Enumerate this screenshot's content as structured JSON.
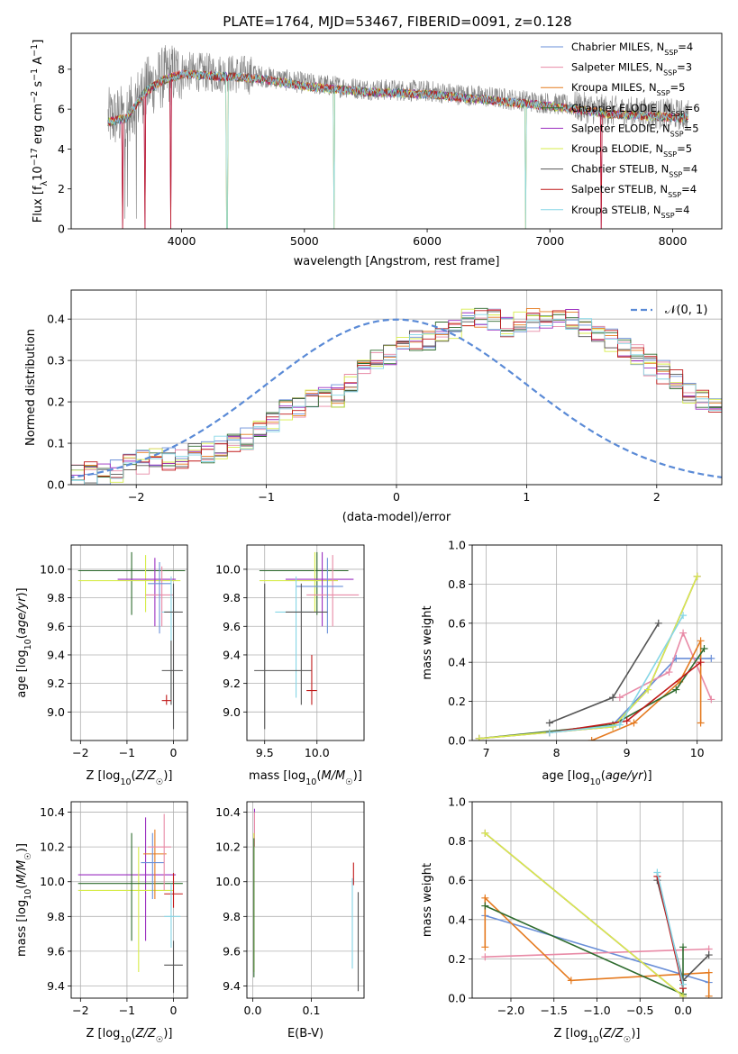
{
  "title": "PLATE=1764, MJD=53467, FIBERID=0091, z=0.128",
  "colors": {
    "Chabrier MILES": "#6a8fd8",
    "Salpeter MILES": "#e88aa6",
    "Kroupa MILES": "#e57a1f",
    "Chabrier ELODIE": "#2e6b2e",
    "Salpeter ELODIE": "#9b2fc0",
    "Kroupa ELODIE": "#d7ec4a",
    "Chabrier STELIB": "#555555",
    "Salpeter STELIB": "#c01818",
    "Kroupa STELIB": "#86d6e6"
  },
  "chart_data": [
    {
      "id": "spectrum",
      "type": "line",
      "title": "PLATE=1764, MJD=53467, FIBERID=0091, z=0.128",
      "xlabel": "wavelength [Angstrom, rest frame]",
      "ylabel": "Flux [f_λ 10^-17 erg cm^-2 s^-1 A^-1]",
      "xlim": [
        3100,
        8400
      ],
      "ylim": [
        0,
        9.8
      ],
      "xticks": [
        4000,
        5000,
        6000,
        7000,
        8000
      ],
      "yticks": [
        0,
        2,
        4,
        6,
        8
      ],
      "grid": false,
      "legend_position": "top-right",
      "legend": [
        {
          "label": "Chabrier MILES, N",
          "sub": "SSP",
          "value": "=4"
        },
        {
          "label": "Salpeter MILES, N",
          "sub": "SSP",
          "value": "=3"
        },
        {
          "label": "Kroupa MILES, N",
          "sub": "SSP",
          "value": "=5"
        },
        {
          "label": "Chabrier ELODIE, N",
          "sub": "SSP",
          "value": "=6"
        },
        {
          "label": "Salpeter ELODIE, N",
          "sub": "SSP",
          "value": "=5"
        },
        {
          "label": "Kroupa ELODIE, N",
          "sub": "SSP",
          "value": "=5"
        },
        {
          "label": "Chabrier STELIB, N",
          "sub": "SSP",
          "value": "=4"
        },
        {
          "label": "Salpeter STELIB, N",
          "sub": "SSP",
          "value": "=4"
        },
        {
          "label": "Kroupa STELIB, N",
          "sub": "SSP",
          "value": "=4"
        }
      ],
      "data_envelope": {
        "x": [
          3400,
          3550,
          3700,
          3850,
          4000,
          4300,
          4600,
          5000,
          5500,
          6000,
          6500,
          7000,
          7500,
          8100
        ],
        "y": [
          5.5,
          5.7,
          7.0,
          7.6,
          7.9,
          7.8,
          7.7,
          7.3,
          7.0,
          6.9,
          6.6,
          6.3,
          5.9,
          5.7
        ]
      },
      "model_dropouts": [
        3520,
        3700,
        3910,
        4370,
        5240,
        6800,
        7420
      ]
    },
    {
      "id": "residuals",
      "type": "step",
      "xlabel": "(data-model)/error",
      "ylabel": "Normed distribution",
      "xlim": [
        -2.5,
        2.5
      ],
      "ylim": [
        0,
        0.47
      ],
      "xticks": [
        -2,
        -1,
        0,
        1,
        2
      ],
      "yticks": [
        0.0,
        0.1,
        0.2,
        0.3,
        0.4
      ],
      "grid": true,
      "legend_position": "top-right",
      "legend": [
        "𝒩(0, 1)"
      ],
      "bin_width": 0.1,
      "mean_histogram": [
        0.02,
        0.02,
        0.025,
        0.03,
        0.035,
        0.05,
        0.055,
        0.06,
        0.06,
        0.065,
        0.075,
        0.08,
        0.09,
        0.1,
        0.11,
        0.13,
        0.155,
        0.175,
        0.19,
        0.2,
        0.205,
        0.215,
        0.245,
        0.28,
        0.3,
        0.315,
        0.33,
        0.345,
        0.355,
        0.365,
        0.38,
        0.4,
        0.405,
        0.395,
        0.385,
        0.39,
        0.4,
        0.405,
        0.41,
        0.395,
        0.38,
        0.365,
        0.35,
        0.33,
        0.31,
        0.29,
        0.27,
        0.25,
        0.225,
        0.2,
        0.185,
        0.16,
        0.14,
        0.125,
        0.11,
        0.095,
        0.085,
        0.075,
        0.065,
        0.055,
        0.05,
        0.04,
        0.035,
        0.03,
        0.025
      ]
    },
    {
      "id": "age-vs-Z",
      "type": "errorbar",
      "xlabel": "Z [log10(Z/Z☉)]",
      "ylabel": "age [log10(age/yr)]",
      "xlim": [
        -2.2,
        0.3
      ],
      "ylim": [
        8.8,
        10.17
      ],
      "xticks": [
        -2,
        -1,
        0
      ],
      "yticks": [
        9.0,
        9.2,
        9.4,
        9.6,
        9.8,
        10.0
      ],
      "grid": true,
      "points": [
        {
          "s": "Chabrier ELODIE",
          "x": -0.9,
          "xl": -2.05,
          "xh": 0.25,
          "y": 9.99,
          "yl": 9.68,
          "yh": 10.12
        },
        {
          "s": "Kroupa ELODIE",
          "x": -0.6,
          "xl": -2.05,
          "xh": 0.15,
          "y": 9.92,
          "yl": 9.7,
          "yh": 10.1
        },
        {
          "s": "Salpeter ELODIE",
          "x": -0.4,
          "xl": -1.2,
          "xh": 0.05,
          "y": 9.93,
          "yl": 9.6,
          "yh": 10.08
        },
        {
          "s": "Salpeter MILES",
          "x": -0.25,
          "xl": -0.6,
          "xh": 0.0,
          "y": 9.82,
          "yl": 9.6,
          "yh": 10.02
        },
        {
          "s": "Chabrier MILES",
          "x": -0.3,
          "xl": -0.55,
          "xh": -0.05,
          "y": 9.9,
          "yl": 9.55,
          "yh": 10.05
        },
        {
          "s": "Kroupa STELIB",
          "x": -0.05,
          "xl": -0.25,
          "xh": 0.1,
          "y": 9.7,
          "yl": 9.1,
          "yh": 9.95
        },
        {
          "s": "Chabrier STELIB",
          "x": 0.0,
          "xl": -0.2,
          "xh": 0.2,
          "y": 9.7,
          "yl": 8.88,
          "yh": 9.9
        },
        {
          "s": "Chabrier STELIB",
          "x": -0.05,
          "xl": -0.25,
          "xh": 0.2,
          "y": 9.29,
          "yl": 9.05,
          "yh": 9.5
        },
        {
          "s": "Salpeter STELIB",
          "x": -0.15,
          "xl": -0.25,
          "xh": -0.05,
          "y": 9.08,
          "yl": 9.05,
          "yh": 9.12
        }
      ]
    },
    {
      "id": "age-vs-mass",
      "type": "errorbar",
      "xlabel": "mass [log10(M/M☉)]",
      "ylabel": "",
      "xlim": [
        9.33,
        10.45
      ],
      "ylim": [
        8.8,
        10.17
      ],
      "xticks": [
        9.5,
        10.0
      ],
      "yticks": [
        9.0,
        9.2,
        9.4,
        9.6,
        9.8,
        10.0
      ],
      "grid": true,
      "points": [
        {
          "s": "Chabrier ELODIE",
          "x": 10.0,
          "xl": 9.45,
          "xh": 10.3,
          "y": 9.99,
          "yl": 9.68,
          "yh": 10.12
        },
        {
          "s": "Kroupa ELODIE",
          "x": 9.98,
          "xl": 9.45,
          "xh": 10.2,
          "y": 9.92,
          "yl": 9.7,
          "yh": 10.12
        },
        {
          "s": "Salpeter ELODIE",
          "x": 10.05,
          "xl": 9.7,
          "xh": 10.35,
          "y": 9.93,
          "yl": 9.6,
          "yh": 10.12
        },
        {
          "s": "Salpeter MILES",
          "x": 10.15,
          "xl": 9.9,
          "xh": 10.4,
          "y": 9.82,
          "yl": 9.6,
          "yh": 10.1
        },
        {
          "s": "Chabrier MILES",
          "x": 10.1,
          "xl": 9.8,
          "xh": 10.25,
          "y": 9.88,
          "yl": 9.55,
          "yh": 10.08
        },
        {
          "s": "Kroupa STELIB",
          "x": 9.8,
          "xl": 9.6,
          "xh": 9.95,
          "y": 9.7,
          "yl": 9.1,
          "yh": 9.95
        },
        {
          "s": "Chabrier STELIB",
          "x": 9.85,
          "xl": 9.7,
          "xh": 10.1,
          "y": 9.7,
          "yl": 9.05,
          "yh": 9.9
        },
        {
          "s": "Chabrier STELIB",
          "x": 9.5,
          "xl": 9.4,
          "xh": 9.95,
          "y": 9.29,
          "yl": 8.88,
          "yh": 9.9
        },
        {
          "s": "Salpeter STELIB",
          "x": 9.95,
          "xl": 9.9,
          "xh": 10.0,
          "y": 9.15,
          "yl": 9.05,
          "yh": 9.4
        }
      ]
    },
    {
      "id": "weight-vs-age",
      "type": "line",
      "xlabel": "age [log10(age/yr)]",
      "ylabel": "mass weight",
      "xlim": [
        6.8,
        10.35
      ],
      "ylim": [
        0,
        1.0
      ],
      "xticks": [
        7,
        8,
        9,
        10
      ],
      "yticks": [
        0.0,
        0.2,
        0.4,
        0.6,
        0.8,
        1.0
      ],
      "grid": true,
      "series": [
        {
          "name": "Chabrier MILES",
          "x": [
            8.8,
            9.7,
            10.2
          ],
          "y": [
            0.08,
            0.42,
            0.42
          ]
        },
        {
          "name": "Salpeter MILES",
          "x": [
            8.9,
            9.6,
            9.8,
            10.2
          ],
          "y": [
            0.22,
            0.35,
            0.55,
            0.21
          ]
        },
        {
          "name": "Kroupa MILES",
          "x": [
            8.5,
            9.1,
            9.75,
            10.05,
            10.05
          ],
          "y": [
            0.0,
            0.09,
            0.3,
            0.51,
            0.09
          ]
        },
        {
          "name": "Chabrier ELODIE",
          "x": [
            6.9,
            8.8,
            9.7,
            10.1
          ],
          "y": [
            0.01,
            0.08,
            0.26,
            0.47
          ]
        },
        {
          "name": "Salpeter ELODIE",
          "x": [
            6.9,
            8.8,
            9.3,
            10.0
          ],
          "y": [
            0.01,
            0.07,
            0.26,
            0.84
          ]
        },
        {
          "name": "Kroupa ELODIE",
          "x": [
            6.9,
            8.8,
            9.3,
            10.0
          ],
          "y": [
            0.01,
            0.07,
            0.26,
            0.84
          ]
        },
        {
          "name": "Chabrier STELIB",
          "x": [
            7.9,
            8.8,
            9.45
          ],
          "y": [
            0.09,
            0.22,
            0.6
          ]
        },
        {
          "name": "Salpeter STELIB",
          "x": [
            7.9,
            9.0,
            10.05
          ],
          "y": [
            0.04,
            0.1,
            0.4
          ]
        },
        {
          "name": "Kroupa STELIB",
          "x": [
            7.9,
            8.9,
            9.8
          ],
          "y": [
            0.04,
            0.08,
            0.64
          ]
        }
      ]
    },
    {
      "id": "mass-vs-Z",
      "type": "errorbar",
      "xlabel": "Z [log10(Z/Z☉)]",
      "ylabel": "mass [log10(M/M☉)]",
      "xlim": [
        -2.2,
        0.3
      ],
      "ylim": [
        9.33,
        10.46
      ],
      "xticks": [
        -2,
        -1,
        0
      ],
      "yticks": [
        9.4,
        9.6,
        9.8,
        10.0,
        10.2,
        10.4
      ],
      "grid": true,
      "points": [
        {
          "s": "Salpeter ELODIE",
          "x": -0.6,
          "xl": -2.05,
          "xh": 0.05,
          "y": 10.04,
          "yl": 9.66,
          "yh": 10.37
        },
        {
          "s": "Kroupa ELODIE",
          "x": -0.75,
          "xl": -2.05,
          "xh": 0.0,
          "y": 9.95,
          "yl": 9.48,
          "yh": 10.2
        },
        {
          "s": "Chabrier ELODIE",
          "x": -0.9,
          "xl": -2.05,
          "xh": 0.2,
          "y": 9.99,
          "yl": 9.66,
          "yh": 10.28
        },
        {
          "s": "Kroupa MILES",
          "x": -0.4,
          "xl": -0.65,
          "xh": -0.15,
          "y": 10.16,
          "yl": 9.9,
          "yh": 10.3
        },
        {
          "s": "Chabrier MILES",
          "x": -0.45,
          "xl": -0.7,
          "xh": -0.2,
          "y": 10.11,
          "yl": 9.9,
          "yh": 10.28
        },
        {
          "s": "Salpeter MILES",
          "x": -0.2,
          "xl": -0.55,
          "xh": -0.05,
          "y": 10.2,
          "yl": 9.95,
          "yh": 10.39
        },
        {
          "s": "Salpeter STELIB",
          "x": 0.0,
          "xl": -0.2,
          "xh": 0.2,
          "y": 9.93,
          "yl": 9.85,
          "yh": 10.05
        },
        {
          "s": "Kroupa STELIB",
          "x": -0.05,
          "xl": -0.2,
          "xh": 0.15,
          "y": 9.8,
          "yl": 9.62,
          "yh": 9.99
        },
        {
          "s": "Chabrier STELIB",
          "x": 0.0,
          "xl": -0.2,
          "xh": 0.2,
          "y": 9.52,
          "yl": 9.36,
          "yh": 9.66
        }
      ]
    },
    {
      "id": "mass-vs-EBV",
      "type": "errorbar",
      "xlabel": "E(B-V)",
      "ylabel": "",
      "xlim": [
        -0.01,
        0.19
      ],
      "ylim": [
        9.33,
        10.46
      ],
      "xticks": [
        0.0,
        0.1
      ],
      "yticks": [
        9.4,
        9.6,
        9.8,
        10.0,
        10.2,
        10.4
      ],
      "grid": true,
      "points": [
        {
          "s": "Salpeter ELODIE",
          "x": 0.003,
          "y": 10.36,
          "yl": 10.28,
          "yh": 10.42
        },
        {
          "s": "Salpeter MILES",
          "x": 0.003,
          "y": 10.3,
          "yl": 10.2,
          "yh": 10.4
        },
        {
          "s": "Kroupa ELODIE",
          "x": 0.002,
          "y": 9.9,
          "yl": 9.48,
          "yh": 10.28
        },
        {
          "s": "Chabrier ELODIE",
          "x": 0.002,
          "y": 9.9,
          "yl": 9.45,
          "yh": 10.25
        },
        {
          "s": "Salpeter STELIB",
          "x": 0.172,
          "y": 10.05,
          "yl": 9.98,
          "yh": 10.11
        },
        {
          "s": "Kroupa STELIB",
          "x": 0.17,
          "y": 9.8,
          "yl": 9.5,
          "yh": 10.02
        },
        {
          "s": "Chabrier STELIB",
          "x": 0.18,
          "y": 9.65,
          "yl": 9.37,
          "yh": 9.94
        }
      ]
    },
    {
      "id": "weight-vs-Z",
      "type": "line",
      "xlabel": "Z [log10(Z/Z☉)]",
      "ylabel": "mass weight",
      "xlim": [
        -2.45,
        0.45
      ],
      "ylim": [
        0,
        1.0
      ],
      "xticks": [
        -2.0,
        -1.5,
        -1.0,
        -0.5,
        0.0
      ],
      "yticks": [
        0.0,
        0.2,
        0.4,
        0.6,
        0.8,
        1.0
      ],
      "grid": true,
      "series": [
        {
          "name": "Chabrier MILES",
          "x": [
            -2.3,
            0.3
          ],
          "y": [
            0.42,
            0.08
          ]
        },
        {
          "name": "Salpeter MILES",
          "x": [
            -2.3,
            0.3
          ],
          "y": [
            0.21,
            0.25
          ]
        },
        {
          "name": "Kroupa MILES",
          "x": [
            -2.3,
            -2.3,
            -1.3,
            0.3,
            0.3
          ],
          "y": [
            0.26,
            0.51,
            0.09,
            0.13,
            0.01
          ]
        },
        {
          "name": "Chabrier ELODIE",
          "x": [
            -2.3,
            0.0,
            0.0
          ],
          "y": [
            0.47,
            0.02,
            0.26
          ]
        },
        {
          "name": "Salpeter ELODIE",
          "x": [
            -2.3,
            0.0
          ],
          "y": [
            0.84,
            0.01
          ]
        },
        {
          "name": "Kroupa ELODIE",
          "x": [
            -2.3,
            0.0
          ],
          "y": [
            0.84,
            0.01
          ]
        },
        {
          "name": "Chabrier STELIB",
          "x": [
            -0.3,
            0.0,
            0.3
          ],
          "y": [
            0.6,
            0.09,
            0.22
          ]
        },
        {
          "name": "Salpeter STELIB",
          "x": [
            -0.3,
            0.0
          ],
          "y": [
            0.62,
            0.05
          ]
        },
        {
          "name": "Kroupa STELIB",
          "x": [
            -0.3,
            0.0
          ],
          "y": [
            0.64,
            0.07
          ]
        }
      ]
    }
  ]
}
